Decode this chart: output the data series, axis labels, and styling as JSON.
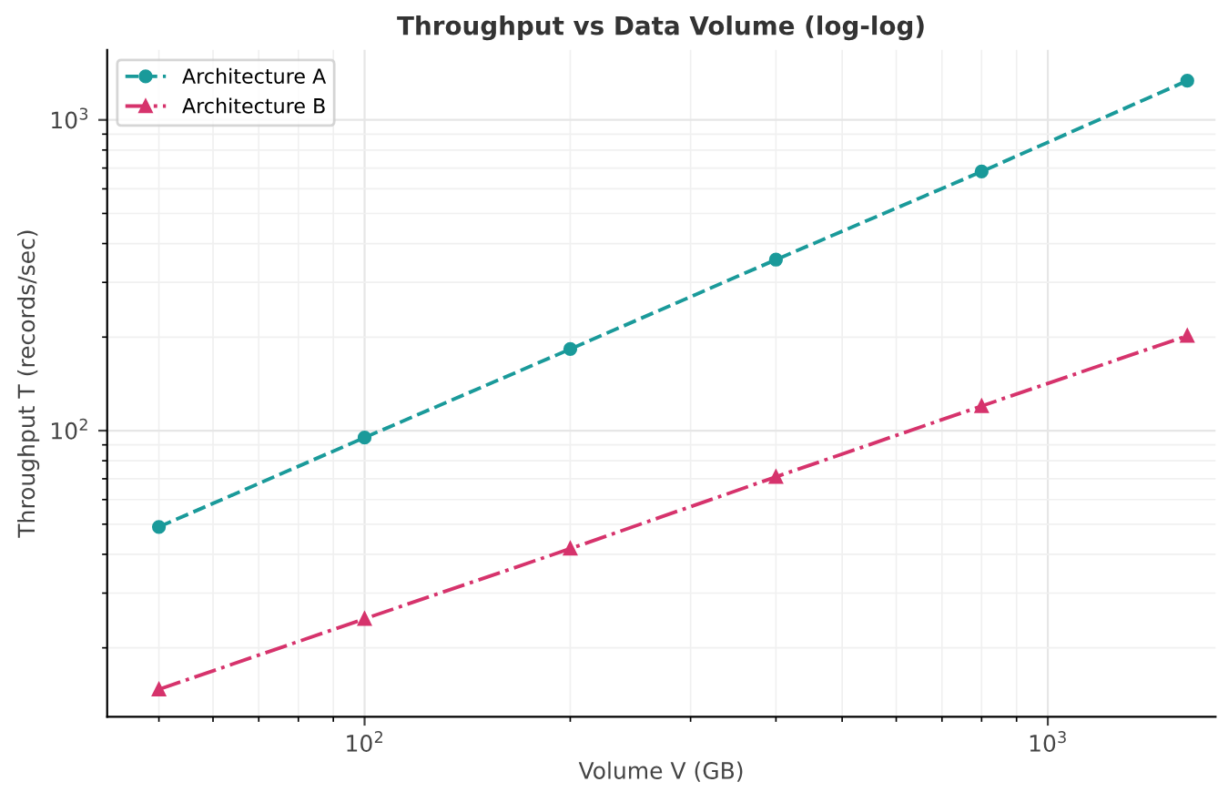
{
  "chart_data": {
    "type": "line",
    "title": "Throughput vs Data Volume (log-log)",
    "xlabel": "Volume V (GB)",
    "ylabel": "Throughput T (records/sec)",
    "x": [
      50,
      100,
      200,
      400,
      800,
      1600
    ],
    "series": [
      {
        "name": "Architecture A",
        "color": "#1a9a9a",
        "values": [
          49,
          95,
          183,
          355,
          682,
          1337
        ],
        "marker": "circle",
        "line_style": "dashed"
      },
      {
        "name": "Architecture B",
        "color": "#d6336c",
        "values": [
          14.7,
          24.8,
          41.7,
          71,
          120,
          202
        ],
        "marker": "triangle",
        "line_style": "dashdot"
      }
    ],
    "log": "xy",
    "xlim": [
      42,
      1760
    ],
    "ylim": [
      12,
      1680
    ],
    "xticks": [
      {
        "value": 100,
        "label": "10$^{2}$"
      },
      {
        "value": 1000,
        "label": "10$^{3}$"
      }
    ],
    "yticks": [
      {
        "value": 100,
        "label": "10$^{2}$"
      },
      {
        "value": 1000,
        "label": "10$^{3}$"
      }
    ],
    "grid": true,
    "legend": "top left"
  }
}
